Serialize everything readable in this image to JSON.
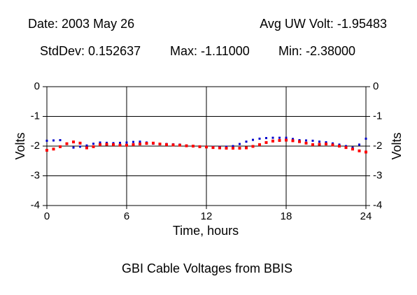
{
  "header": {
    "date": "Date: 2003 May 26",
    "avg": "Avg UW Volt: -1.95483",
    "stddev": "StdDev: 0.152637",
    "max": "Max: -1.11000",
    "min": "Min: -2.38000"
  },
  "chart_data": {
    "type": "scatter",
    "title": "GBI Cable Voltages from BBIS",
    "x_label": "Time, hours",
    "y_label": "Volts",
    "x": [
      0,
      0.5,
      1,
      1.5,
      2,
      2.5,
      3,
      3.5,
      4,
      4.5,
      5,
      5.5,
      6,
      6.5,
      7,
      7.5,
      8,
      8.5,
      9,
      9.5,
      10,
      10.5,
      11,
      11.5,
      12,
      12.5,
      13,
      13.5,
      14,
      14.5,
      15,
      15.5,
      16,
      16.5,
      17,
      17.5,
      18,
      18.5,
      19,
      19.5,
      20,
      20.5,
      21,
      21.5,
      22,
      22.5,
      23,
      23.5,
      24
    ],
    "series": [
      {
        "color": "#0000cc",
        "values": [
          -1.82,
          -1.81,
          -1.8,
          -1.92,
          -2.05,
          -2.02,
          -1.98,
          -1.92,
          -1.88,
          -1.89,
          -1.9,
          -1.89,
          -1.88,
          -1.86,
          -1.85,
          -1.88,
          -1.92,
          -1.93,
          -1.93,
          -1.94,
          -1.95,
          -1.98,
          -2.0,
          -2.01,
          -2.02,
          -2.03,
          -2.03,
          -2.02,
          -2.0,
          -1.93,
          -1.85,
          -1.79,
          -1.75,
          -1.73,
          -1.72,
          -1.72,
          -1.72,
          -1.76,
          -1.8,
          -1.81,
          -1.82,
          -1.85,
          -1.87,
          -1.91,
          -1.95,
          -2.0,
          -2.05,
          -1.95,
          -1.75
        ]
      },
      {
        "color": "#ff0000",
        "values": [
          -2.14,
          -2.1,
          -2.02,
          -1.92,
          -1.86,
          -1.9,
          -2.06,
          -2.02,
          -1.95,
          -1.94,
          -1.95,
          -1.97,
          -1.97,
          -1.95,
          -1.93,
          -1.91,
          -1.9,
          -1.93,
          -1.95,
          -1.96,
          -1.97,
          -1.99,
          -2.0,
          -2.02,
          -2.03,
          -2.05,
          -2.06,
          -2.07,
          -2.07,
          -2.07,
          -2.06,
          -2.01,
          -1.95,
          -1.88,
          -1.83,
          -1.81,
          -1.8,
          -1.82,
          -1.85,
          -1.9,
          -1.95,
          -1.94,
          -1.93,
          -1.96,
          -2.0,
          -2.05,
          -2.1,
          -2.16,
          -2.2
        ]
      }
    ],
    "xlim": [
      0,
      24
    ],
    "xticks": [
      0,
      6,
      12,
      18,
      24
    ],
    "ylim": [
      -4,
      0
    ],
    "yticks": [
      0,
      -1,
      -2,
      -3,
      -4
    ],
    "grid": true
  }
}
